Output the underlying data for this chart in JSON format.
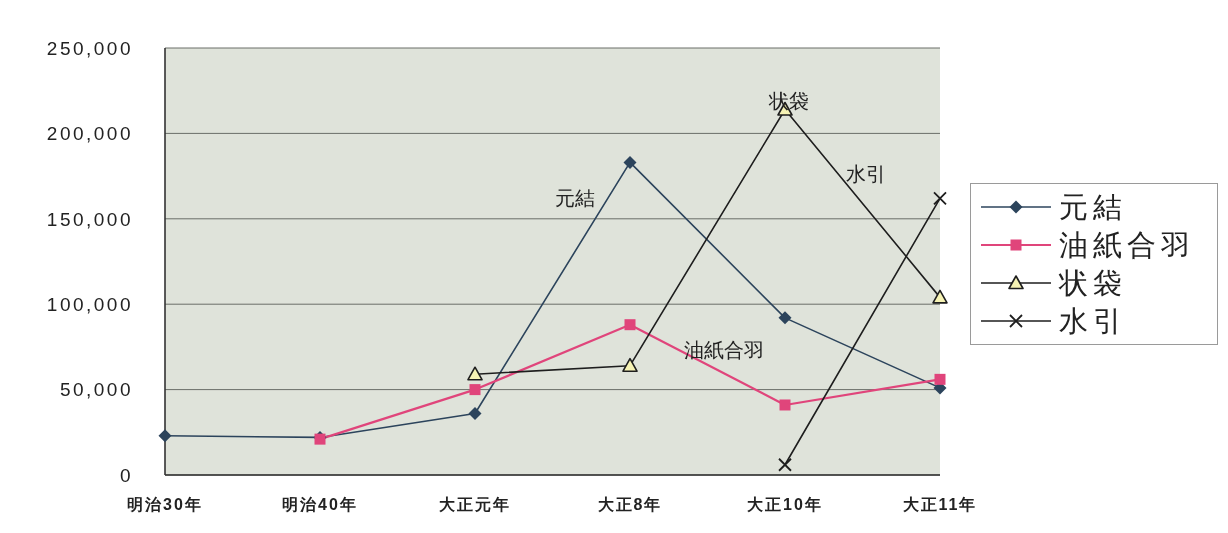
{
  "chart_data": {
    "type": "line",
    "categories": [
      "明治30年",
      "明治40年",
      "大正元年",
      "大正8年",
      "大正10年",
      "大正11年"
    ],
    "series": [
      {
        "name": "元結",
        "color": "#2c445c",
        "marker": "diamond",
        "values": [
          23000,
          22000,
          36000,
          183000,
          92000,
          51000
        ]
      },
      {
        "name": "油紙合羽",
        "color": "#e0457b",
        "marker": "square",
        "values": [
          null,
          21000,
          50000,
          88000,
          41000,
          56000
        ]
      },
      {
        "name": "状袋",
        "color": "#1e1e1e",
        "marker": "triangle",
        "values": [
          null,
          null,
          59000,
          64000,
          214000,
          104000
        ]
      },
      {
        "name": "水引",
        "color": "#1e1e1e",
        "marker": "cross",
        "values": [
          null,
          null,
          null,
          null,
          6000,
          162000
        ]
      }
    ],
    "ylim": [
      0,
      250000
    ],
    "yticks": [
      {
        "value": 0,
        "label": "0"
      },
      {
        "value": 50000,
        "label": "50,000"
      },
      {
        "value": 100000,
        "label": "100,000"
      },
      {
        "value": 150000,
        "label": "150,000"
      },
      {
        "value": 200000,
        "label": "200,000"
      },
      {
        "value": 250000,
        "label": "250,000"
      }
    ],
    "grid": "y",
    "legend": "right",
    "annotations": [
      "元結",
      {
        "text": "状袋",
        "x": "大正10年",
        "y": 219000
      },
      "水引",
      "油紙合羽"
    ]
  }
}
